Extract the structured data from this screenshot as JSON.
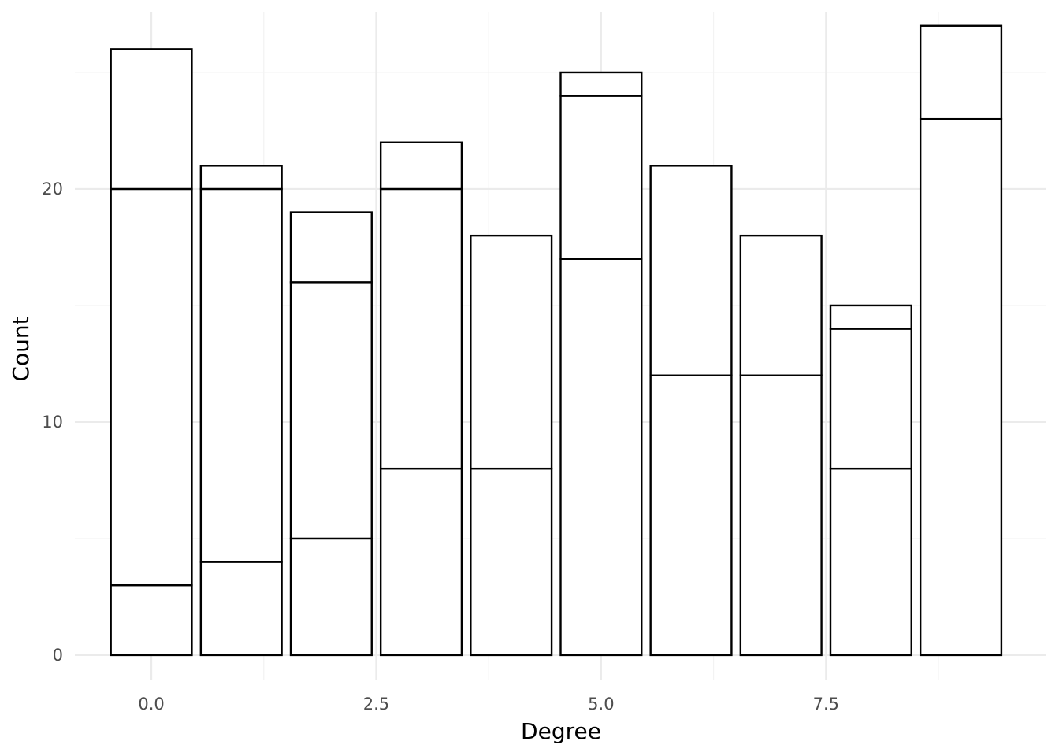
{
  "chart_data": {
    "type": "bar",
    "stacked": true,
    "xlabel": "Degree",
    "ylabel": "Count",
    "xlim": [
      -0.85,
      9.95
    ],
    "ylim": [
      -1.05,
      27.6
    ],
    "x_ticks": [
      0.0,
      2.5,
      5.0,
      7.5
    ],
    "x_tick_labels": [
      "0.0",
      "2.5",
      "5.0",
      "7.5"
    ],
    "y_ticks": [
      0,
      10,
      20
    ],
    "y_tick_labels": [
      "0",
      "10",
      "20"
    ],
    "grid": true,
    "legend": "none",
    "bar_fill": "#ffffff",
    "bar_outline": "#000000",
    "bar_width": 0.9,
    "bars": [
      {
        "x": 0,
        "boundaries": [
          3,
          20,
          26
        ]
      },
      {
        "x": 1,
        "boundaries": [
          4,
          20,
          21
        ]
      },
      {
        "x": 2,
        "boundaries": [
          5,
          16,
          19
        ]
      },
      {
        "x": 3,
        "boundaries": [
          8,
          20,
          22
        ]
      },
      {
        "x": 4,
        "boundaries": [
          8,
          18
        ]
      },
      {
        "x": 5,
        "boundaries": [
          17,
          24,
          25
        ]
      },
      {
        "x": 6,
        "boundaries": [
          12,
          21
        ]
      },
      {
        "x": 7,
        "boundaries": [
          12,
          18
        ]
      },
      {
        "x": 8,
        "boundaries": [
          8,
          14,
          15
        ]
      },
      {
        "x": 9,
        "boundaries": [
          23,
          27
        ]
      }
    ]
  }
}
